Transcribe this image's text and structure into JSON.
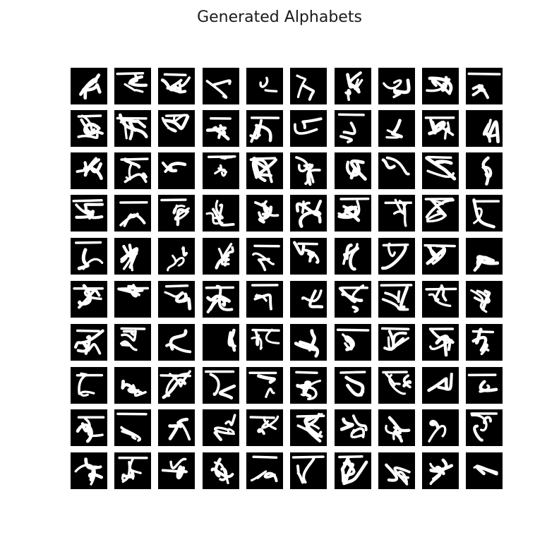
{
  "title": "Generated Alphabets",
  "grid": {
    "rows": 10,
    "cols": 10
  },
  "tile_background": "#000000",
  "stroke_color": "#ffffff",
  "tile_content": "generated handwritten Bengali character glyph"
}
